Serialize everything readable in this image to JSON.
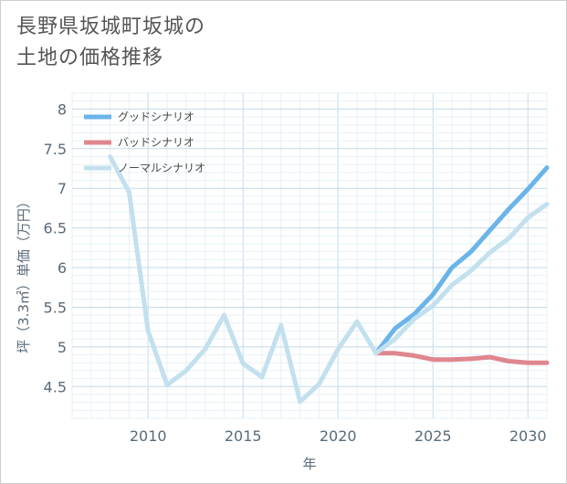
{
  "title": "長野県坂城町坂城の\n土地の価格推移",
  "chart_data": {
    "type": "line",
    "xlabel": "年",
    "ylabel": "坪（3.3㎡）単価（万円）",
    "xlim": [
      2006,
      2031
    ],
    "ylim": [
      4.1,
      8.2
    ],
    "xticks": [
      2010,
      2015,
      2020,
      2025,
      2030
    ],
    "yticks": [
      4.5,
      5,
      5.5,
      6,
      6.5,
      7,
      7.5,
      8
    ],
    "grid": true,
    "legend_position": "top-left",
    "series": [
      {
        "name": "グッドシナリオ",
        "color": "#6ab4ea",
        "x": [
          2022,
          2023,
          2024,
          2025,
          2026,
          2027,
          2028,
          2029,
          2030,
          2031
        ],
        "y": [
          4.92,
          5.23,
          5.41,
          5.66,
          6.0,
          6.2,
          6.47,
          6.74,
          6.99,
          7.26
        ]
      },
      {
        "name": "バッドシナリオ",
        "color": "#e0868e",
        "x": [
          2022,
          2023,
          2024,
          2025,
          2026,
          2027,
          2028,
          2029,
          2030,
          2031
        ],
        "y": [
          4.92,
          4.92,
          4.89,
          4.84,
          4.84,
          4.85,
          4.87,
          4.82,
          4.8,
          4.8
        ]
      },
      {
        "name": "ノーマルシナリオ",
        "color": "#c2e0ee",
        "x": [
          2008,
          2009,
          2010,
          2011,
          2012,
          2013,
          2014,
          2015,
          2016,
          2017,
          2018,
          2019,
          2020,
          2021,
          2022,
          2023,
          2024,
          2025,
          2026,
          2027,
          2028,
          2029,
          2030,
          2031
        ],
        "y": [
          7.4,
          6.95,
          5.2,
          4.52,
          4.7,
          4.97,
          5.4,
          4.79,
          4.62,
          5.27,
          4.31,
          4.53,
          4.97,
          5.32,
          4.92,
          5.1,
          5.35,
          5.52,
          5.78,
          5.96,
          6.19,
          6.37,
          6.63,
          6.8
        ]
      }
    ]
  }
}
